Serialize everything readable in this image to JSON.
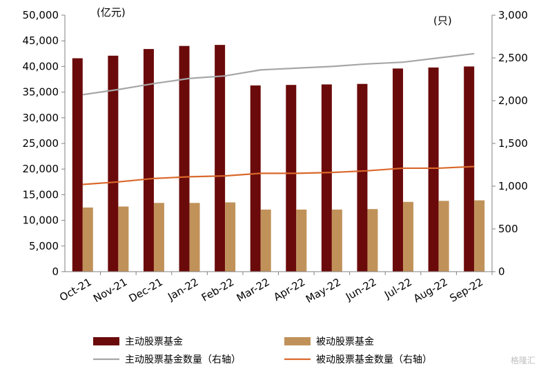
{
  "chart_data": {
    "type": "bar",
    "categories": [
      "Oct-21",
      "Nov-21",
      "Dec-21",
      "Jan-22",
      "Feb-22",
      "Mar-22",
      "Apr-22",
      "May-22",
      "Jun-22",
      "Jul-22",
      "Aug-22",
      "Sep-22"
    ],
    "series": [
      {
        "name": "主动股票基金",
        "kind": "bar",
        "axis": "left",
        "color": "#6b0a0a",
        "values": [
          41600,
          42100,
          43400,
          44000,
          44200,
          36300,
          36400,
          36500,
          36600,
          39600,
          39800,
          40000
        ]
      },
      {
        "name": "被动股票基金",
        "kind": "bar",
        "axis": "left",
        "color": "#c0925a",
        "values": [
          12500,
          12700,
          13400,
          13400,
          13500,
          12100,
          12100,
          12100,
          12200,
          13600,
          13800,
          13900
        ]
      },
      {
        "name": "主动股票基金数量（右轴）",
        "kind": "line",
        "axis": "right",
        "color": "#a6a6a6",
        "values": [
          2070,
          2130,
          2200,
          2260,
          2290,
          2360,
          2380,
          2400,
          2430,
          2450,
          2500,
          2550
        ]
      },
      {
        "name": "被动股票基金数量（右轴）",
        "kind": "line",
        "axis": "right",
        "color": "#d9682b",
        "values": [
          1020,
          1050,
          1090,
          1110,
          1120,
          1150,
          1150,
          1160,
          1180,
          1210,
          1210,
          1230
        ]
      }
    ],
    "left_axis": {
      "unit_label": "(亿元)",
      "min": 0,
      "max": 50000,
      "ticks": [
        "0",
        "5,000",
        "10,000",
        "15,000",
        "20,000",
        "25,000",
        "30,000",
        "35,000",
        "40,000",
        "45,000",
        "50,000"
      ]
    },
    "right_axis": {
      "unit_label": "(只)",
      "min": 0,
      "max": 3000,
      "ticks": [
        "0",
        "500",
        "1,000",
        "1,500",
        "2,000",
        "2,500",
        "3,000"
      ]
    },
    "legend_position": "bottom",
    "grid": false
  },
  "watermark": {
    "text": "格隆汇"
  }
}
